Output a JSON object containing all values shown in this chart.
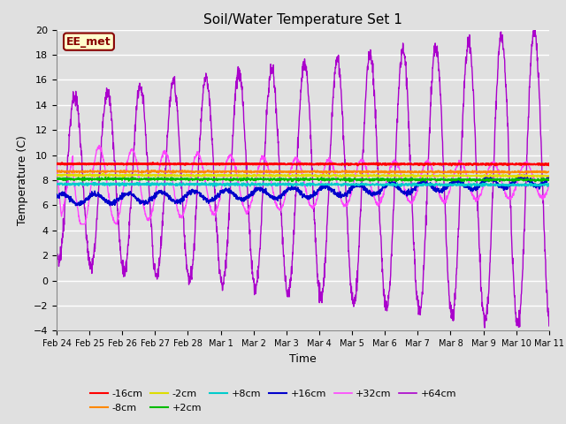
{
  "title": "Soil/Water Temperature Set 1",
  "xlabel": "Time",
  "ylabel": "Temperature (C)",
  "ylim": [
    -4,
    20
  ],
  "yticks": [
    -4,
    -2,
    0,
    2,
    4,
    6,
    8,
    10,
    12,
    14,
    16,
    18,
    20
  ],
  "xlim_days": [
    0,
    15
  ],
  "background_color": "#e0e0e0",
  "grid_color": "#ffffff",
  "annotation_text": "EE_met",
  "annotation_bg": "#ffffcc",
  "annotation_border": "#880000",
  "annotation_text_color": "#880000",
  "series_colors": {
    "-16cm": "#ff0000",
    "-8cm": "#ff8800",
    "-2cm": "#dddd00",
    "+2cm": "#00bb00",
    "+8cm": "#00cccc",
    "+16cm": "#0000cc",
    "+32cm": "#ff44ff",
    "+64cm": "#aa00cc"
  },
  "x_tick_labels": [
    "Feb 24",
    "Feb 25",
    "Feb 26",
    "Feb 27",
    "Feb 28",
    "Mar 1",
    "Mar 2",
    "Mar 3",
    "Mar 4",
    "Mar 5",
    "Mar 6",
    "Mar 7",
    "Mar 8",
    "Mar 9",
    "Mar 10",
    "Mar 11"
  ],
  "x_tick_positions": [
    0,
    1,
    2,
    3,
    4,
    5,
    6,
    7,
    8,
    9,
    10,
    11,
    12,
    13,
    14,
    15
  ]
}
